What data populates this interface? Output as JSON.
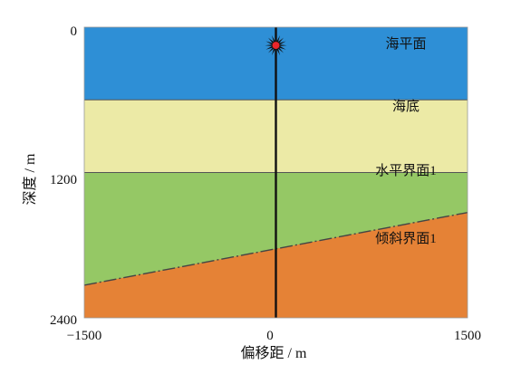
{
  "axes": {
    "x_title": "偏移距 / m",
    "y_title": "深度 / m",
    "x_ticks": [
      {
        "value": -1500,
        "label": "−1500"
      },
      {
        "value": 0,
        "label": "0"
      },
      {
        "value": 1500,
        "label": "1500"
      }
    ],
    "y_ticks": [
      {
        "value": 0,
        "label": "0"
      },
      {
        "value": 1200,
        "label": "1200"
      },
      {
        "value": 2400,
        "label": "2400"
      }
    ],
    "x_range": [
      -1500,
      1500
    ],
    "y_range": [
      0,
      2400
    ]
  },
  "layers": [
    {
      "label": "海平面",
      "color": "#2e8fd6"
    },
    {
      "label": "海底",
      "color": "#eceaa6"
    },
    {
      "label": "水平界面1",
      "color": "#95c865"
    },
    {
      "label": "倾斜界面1",
      "color": "#e58236"
    }
  ],
  "interfaces": {
    "seafloor_depth": 600,
    "horizontal_interface_depth": 1200,
    "dipping_interface": {
      "x": [
        -1500,
        1500
      ],
      "depth": [
        2130,
        1530
      ]
    }
  },
  "source": {
    "x": 0,
    "depth": 150,
    "color": "#e8262b"
  },
  "well": {
    "x": 0,
    "top_depth": 0,
    "bottom_depth": 2400
  }
}
